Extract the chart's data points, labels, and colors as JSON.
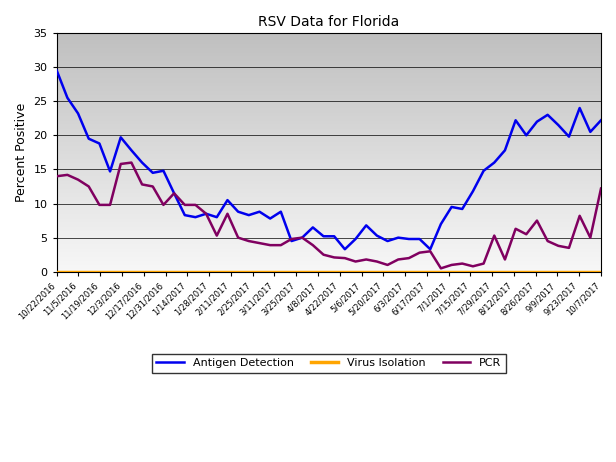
{
  "title": "RSV Data for Florida",
  "ylabel": "Percent Positive",
  "ylim": [
    0,
    35
  ],
  "yticks": [
    0,
    5,
    10,
    15,
    20,
    25,
    30,
    35
  ],
  "x_labels": [
    "10/22/2016",
    "11/5/2016",
    "11/19/2016",
    "12/3/2016",
    "12/17/2016",
    "12/31/2016",
    "1/14/2017",
    "1/28/2017",
    "2/11/2017",
    "2/25/2017",
    "3/11/2017",
    "3/25/2017",
    "4/8/2017",
    "4/22/2017",
    "5/6/2017",
    "5/20/2017",
    "6/3/2017",
    "6/17/2017",
    "7/1/2017",
    "7/15/2017",
    "7/29/2017",
    "8/12/2017",
    "8/26/2017",
    "9/9/2017",
    "9/23/2017",
    "10/7/2017"
  ],
  "antigen": [
    29.5,
    25.5,
    23.2,
    19.5,
    18.8,
    14.7,
    19.7,
    17.8,
    16.0,
    14.5,
    14.8,
    11.5,
    8.3,
    8.0,
    8.5,
    8.0,
    10.5,
    8.8,
    8.3,
    8.8,
    7.8,
    8.8,
    4.5,
    5.0,
    6.5,
    5.2,
    5.2,
    3.3,
    4.8,
    6.8,
    5.3,
    4.5,
    5.0,
    4.8,
    4.8,
    3.3,
    7.0,
    9.5,
    9.2,
    11.8,
    14.8,
    16.0,
    17.8,
    22.2,
    20.0,
    22.0,
    23.0,
    21.5,
    19.8,
    24.0,
    20.5,
    22.2
  ],
  "virus_isolation": [
    0,
    0,
    0,
    0,
    0,
    0,
    0,
    0,
    0,
    0,
    0,
    0,
    0,
    0,
    0,
    0,
    0,
    0,
    0,
    0,
    0,
    0,
    0,
    0,
    0,
    0,
    0,
    0,
    0,
    0,
    0,
    0,
    0,
    0,
    0,
    0,
    0,
    0,
    0,
    0,
    0,
    0,
    0,
    0,
    0,
    0,
    0,
    0,
    0,
    0,
    0,
    0
  ],
  "pcr": [
    14.0,
    14.2,
    13.5,
    12.5,
    9.8,
    9.8,
    15.8,
    16.0,
    12.8,
    12.5,
    9.8,
    11.5,
    9.8,
    9.8,
    8.5,
    5.3,
    8.5,
    5.0,
    4.5,
    4.2,
    3.9,
    3.9,
    4.8,
    5.0,
    3.9,
    2.5,
    2.1,
    2.0,
    1.5,
    1.8,
    1.5,
    1.0,
    1.8,
    2.0,
    2.8,
    3.0,
    0.5,
    1.0,
    1.2,
    0.8,
    1.2,
    5.3,
    1.8,
    6.3,
    5.5,
    7.5,
    4.5,
    3.8,
    3.5,
    8.2,
    5.0,
    12.2
  ],
  "antigen_color": "#0000EE",
  "virus_isolation_color": "#FFA500",
  "pcr_color": "#800060",
  "legend_labels": [
    "Antigen Detection",
    "Virus Isolation",
    "PCR"
  ]
}
